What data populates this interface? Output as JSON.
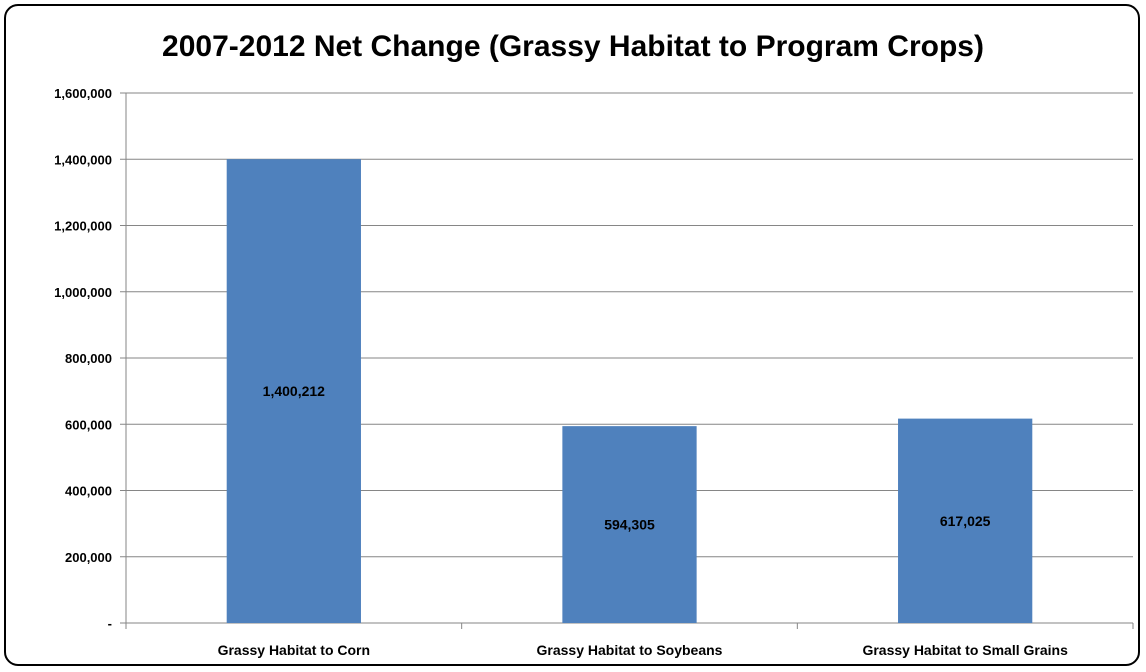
{
  "chart_data": {
    "type": "bar",
    "title": "2007-2012 Net Change (Grassy Habitat to Program Crops)",
    "xlabel": "",
    "ylabel": "",
    "categories": [
      "Grassy Habitat to Corn",
      "Grassy Habitat to Soybeans",
      "Grassy Habitat to Small Grains"
    ],
    "values": [
      1400212,
      594305,
      617025
    ],
    "data_labels": [
      "1,400,212",
      "594,305",
      "617,025"
    ],
    "ylim": [
      0,
      1600000
    ],
    "yticks": [
      0,
      200000,
      400000,
      600000,
      800000,
      1000000,
      1200000,
      1400000,
      1600000
    ],
    "ytick_labels": [
      "-",
      "200,000",
      "400,000",
      "600,000",
      "800,000",
      "1,000,000",
      "1,200,000",
      "1,400,000",
      "1,600,000"
    ],
    "grid": true,
    "legend": "none",
    "bar_color": "#4F81BD",
    "grid_color": "#868686"
  }
}
